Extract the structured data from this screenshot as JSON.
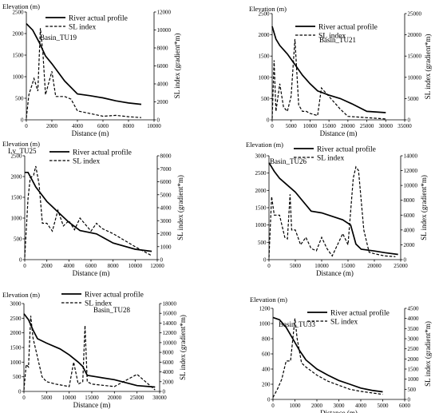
{
  "chart_data": [
    {
      "type": "line",
      "label": "Basin_TU19",
      "left_axis_title": "Elevation (m)",
      "right_axis_title": "SL index (gradient*m)",
      "x_axis_title": "Distance (m)",
      "xlim": [
        0,
        10000
      ],
      "ylim_left": [
        0,
        2500
      ],
      "ylim_right": [
        0,
        12000
      ],
      "x_ticks": [
        0,
        2000,
        4000,
        6000,
        8000,
        10000
      ],
      "y_left_ticks": [
        0,
        500,
        1000,
        1500,
        2000,
        2500
      ],
      "y_right_ticks": [
        0,
        2000,
        4000,
        6000,
        8000,
        10000,
        12000
      ],
      "legend": [
        "River actual profile",
        "SL index"
      ],
      "series": [
        {
          "name": "River actual profile",
          "axis": "left",
          "x": [
            0,
            500,
            1000,
            1500,
            2000,
            3000,
            4000,
            5000,
            6000,
            7000,
            8000,
            9000
          ],
          "y": [
            2230,
            2080,
            1800,
            1480,
            1300,
            900,
            600,
            560,
            510,
            440,
            390,
            360
          ]
        },
        {
          "name": "SL index",
          "axis": "right",
          "x": [
            0,
            200,
            600,
            900,
            1100,
            1300,
            1500,
            2000,
            2300,
            3000,
            3500,
            4000,
            6000,
            7000,
            8000,
            9000
          ],
          "y": [
            200,
            2800,
            4600,
            3200,
            10200,
            7400,
            2800,
            5400,
            2600,
            2600,
            2300,
            1000,
            400,
            500,
            350,
            250
          ]
        }
      ]
    },
    {
      "type": "line",
      "label": "Basin_TU21",
      "left_axis_title": "Elevation (m)",
      "right_axis_title": "SL index (gradient*m)",
      "x_axis_title": "Distance (m)",
      "xlim": [
        0,
        35000
      ],
      "ylim_left": [
        0,
        2500
      ],
      "ylim_right": [
        0,
        25000
      ],
      "x_ticks": [
        0,
        5000,
        10000,
        15000,
        20000,
        25000,
        30000,
        35000
      ],
      "y_left_ticks": [
        0,
        500,
        1000,
        1500,
        2000,
        2500
      ],
      "y_right_ticks": [
        0,
        5000,
        10000,
        15000,
        20000,
        25000
      ],
      "legend": [
        "River actual profile",
        "SL index"
      ],
      "series": [
        {
          "name": "River actual profile",
          "axis": "left",
          "x": [
            0,
            1000,
            2000,
            4000,
            6000,
            8000,
            10000,
            12000,
            15000,
            18000,
            21000,
            25000,
            30000
          ],
          "y": [
            2200,
            1900,
            1750,
            1550,
            1300,
            1050,
            850,
            680,
            580,
            500,
            380,
            200,
            170
          ]
        },
        {
          "name": "SL index",
          "axis": "right",
          "x": [
            0,
            500,
            1000,
            2000,
            3000,
            4000,
            5000,
            6000,
            7000,
            8000,
            9000,
            10000,
            12000,
            13000,
            15000,
            18000,
            20000,
            25000,
            30000
          ],
          "y": [
            300,
            14000,
            2000,
            8500,
            3000,
            2000,
            5500,
            19000,
            3500,
            2000,
            2000,
            1500,
            1000,
            7500,
            5500,
            2500,
            800,
            500,
            200
          ]
        }
      ]
    },
    {
      "type": "line",
      "label": "Lv_TU25",
      "left_axis_title": "Elevation (m)",
      "right_axis_title": "SL index (gradient*m)",
      "x_axis_title": "Distance (m)",
      "xlim": [
        0,
        12000
      ],
      "ylim_left": [
        0,
        2500
      ],
      "ylim_right": [
        0,
        8000
      ],
      "x_ticks": [
        0,
        2000,
        4000,
        6000,
        8000,
        10000,
        12000
      ],
      "y_left_ticks": [
        0,
        500,
        1000,
        1500,
        2000,
        2500
      ],
      "y_right_ticks": [
        0,
        1000,
        2000,
        3000,
        4000,
        5000,
        6000,
        7000,
        8000
      ],
      "legend": [
        "River actual profile",
        "SL index"
      ],
      "series": [
        {
          "name": "River actual profile",
          "axis": "left",
          "x": [
            0,
            300,
            700,
            1000,
            2000,
            3000,
            4000,
            5000,
            6500,
            8000,
            10000,
            11500
          ],
          "y": [
            2100,
            2100,
            1900,
            1750,
            1400,
            1150,
            900,
            700,
            620,
            400,
            250,
            200
          ]
        },
        {
          "name": "SL index",
          "axis": "right",
          "x": [
            0,
            300,
            500,
            800,
            1000,
            1300,
            1600,
            2000,
            2500,
            3000,
            3500,
            4000,
            4500,
            5000,
            6000,
            6500,
            7000,
            8000,
            10000,
            11500
          ],
          "y": [
            200,
            4700,
            6300,
            6500,
            7200,
            5800,
            2800,
            2800,
            2200,
            3800,
            2600,
            3000,
            2300,
            3200,
            2200,
            2800,
            2400,
            2000,
            1000,
            300
          ]
        }
      ]
    },
    {
      "type": "line",
      "label": "Basin_TU26",
      "left_axis_title": "Elevation (m)",
      "right_axis_title": "SL index (gradient*m)",
      "x_axis_title": "Distance (m)",
      "xlim": [
        0,
        25000
      ],
      "ylim_left": [
        0,
        3000
      ],
      "ylim_right": [
        0,
        14000
      ],
      "x_ticks": [
        0,
        5000,
        10000,
        15000,
        20000,
        25000
      ],
      "y_left_ticks": [
        0,
        500,
        1000,
        1500,
        2000,
        2500,
        3000
      ],
      "y_right_ticks": [
        0,
        2000,
        4000,
        6000,
        8000,
        10000,
        12000,
        14000
      ],
      "legend": [
        "River actual profile",
        "SL index"
      ],
      "series": [
        {
          "name": "River actual profile",
          "axis": "left",
          "x": [
            0,
            1000,
            2000,
            3500,
            5000,
            8000,
            10000,
            12000,
            14000,
            15500,
            16500,
            17500,
            20000,
            22000,
            24500
          ],
          "y": [
            2800,
            2550,
            2350,
            2150,
            1950,
            1400,
            1350,
            1250,
            1150,
            1000,
            450,
            300,
            250,
            200,
            150
          ]
        },
        {
          "name": "SL index",
          "axis": "right",
          "x": [
            0,
            500,
            1000,
            2000,
            3000,
            3500,
            4000,
            4300,
            5000,
            6000,
            7000,
            8000,
            9000,
            10000,
            11000,
            12000,
            14000,
            15000,
            16000,
            16500,
            17000,
            18000,
            19000,
            20000,
            22000,
            24000
          ],
          "y": [
            300,
            8500,
            6000,
            6000,
            3000,
            2800,
            8800,
            4000,
            4000,
            2000,
            3000,
            1500,
            1200,
            3000,
            1500,
            500,
            3500,
            2000,
            11000,
            12500,
            12000,
            4000,
            1000,
            800,
            500,
            400
          ]
        }
      ]
    },
    {
      "type": "line",
      "label": "Basin_TU28",
      "left_axis_title": "Elevation (m)",
      "right_axis_title": "SL index (gradient*m)",
      "x_axis_title": "Distance (m)",
      "xlim": [
        0,
        30000
      ],
      "ylim_left": [
        0,
        3000
      ],
      "ylim_right": [
        0,
        18000
      ],
      "x_ticks": [
        0,
        5000,
        10000,
        15000,
        20000,
        25000,
        30000
      ],
      "y_left_ticks": [
        0,
        500,
        1000,
        1500,
        2000,
        2500,
        3000
      ],
      "y_right_ticks": [
        0,
        2000,
        4000,
        6000,
        8000,
        10000,
        12000,
        14000,
        16000,
        18000
      ],
      "legend": [
        "River actual profile",
        "SL index"
      ],
      "series": [
        {
          "name": "River actual profile",
          "axis": "left",
          "x": [
            0,
            1000,
            2000,
            3000,
            5000,
            8000,
            10000,
            12000,
            13000,
            14000,
            16000,
            20000,
            25000,
            29000
          ],
          "y": [
            2650,
            2450,
            2100,
            1800,
            1650,
            1450,
            1250,
            1000,
            850,
            550,
            500,
            400,
            200,
            150
          ]
        },
        {
          "name": "SL index",
          "axis": "right",
          "x": [
            0,
            500,
            1000,
            1500,
            2000,
            3000,
            4000,
            5000,
            7000,
            10000,
            11000,
            12000,
            13000,
            13500,
            14000,
            15000,
            20000,
            25000,
            29000
          ],
          "y": [
            300,
            5500,
            5000,
            15500,
            11000,
            7000,
            3000,
            2000,
            1500,
            1000,
            6000,
            1500,
            2000,
            13500,
            2000,
            1500,
            1000,
            3500,
            300
          ]
        }
      ]
    },
    {
      "type": "line",
      "label": "Basin_TU33",
      "left_axis_title": "Elevation (m)",
      "right_axis_title": "SL index (gradient*m)",
      "x_axis_title": "Distance (m)",
      "xlim": [
        0,
        6000
      ],
      "ylim_left": [
        0,
        1200
      ],
      "ylim_right": [
        0,
        4500
      ],
      "x_ticks": [
        0,
        1000,
        2000,
        3000,
        4000,
        5000,
        6000
      ],
      "y_left_ticks": [
        0,
        200,
        400,
        600,
        800,
        1000,
        1200
      ],
      "y_right_ticks": [
        0,
        500,
        1000,
        1500,
        2000,
        2500,
        3000,
        3500,
        4000,
        4500
      ],
      "legend": [
        "River actual profile",
        "SL index"
      ],
      "series": [
        {
          "name": "River actual profile",
          "axis": "left",
          "x": [
            0,
            300,
            600,
            900,
            1200,
            1500,
            2000,
            2500,
            3000,
            3500,
            4000,
            4500,
            5000
          ],
          "y": [
            1080,
            1050,
            950,
            800,
            650,
            520,
            400,
            320,
            250,
            200,
            150,
            120,
            100
          ]
        },
        {
          "name": "SL index",
          "axis": "right",
          "x": [
            0,
            200,
            400,
            600,
            800,
            1000,
            1100,
            1300,
            1500,
            2000,
            2500,
            3000,
            3500,
            4000,
            5000
          ],
          "y": [
            100,
            500,
            1000,
            1900,
            1900,
            4000,
            3000,
            1800,
            1600,
            1200,
            900,
            700,
            500,
            400,
            250
          ]
        }
      ]
    }
  ]
}
